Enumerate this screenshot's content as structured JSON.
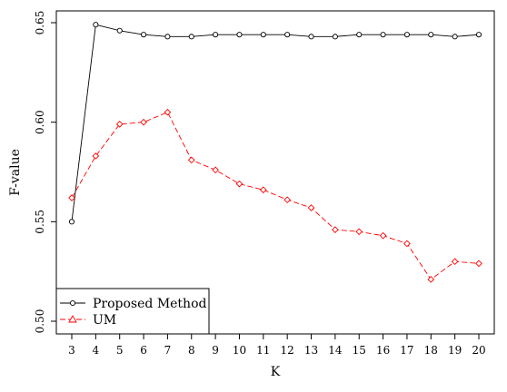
{
  "chart_data": {
    "type": "line",
    "xlabel": "K",
    "ylabel": "F-value",
    "x": [
      3,
      4,
      5,
      6,
      7,
      8,
      9,
      10,
      11,
      12,
      13,
      14,
      15,
      16,
      17,
      18,
      19,
      20
    ],
    "xlim": [
      3,
      20
    ],
    "ylim": [
      0.5,
      0.65
    ],
    "yticks": [
      "0.50",
      "0.55",
      "0.60",
      "0.65"
    ],
    "grid": false,
    "legend_position": "bottom-left",
    "series": [
      {
        "name": "Proposed Method",
        "marker": "circle",
        "line_style": "solid",
        "color": "#000000",
        "values": [
          0.55,
          0.649,
          0.646,
          0.644,
          0.643,
          0.643,
          0.644,
          0.644,
          0.644,
          0.644,
          0.643,
          0.643,
          0.644,
          0.644,
          0.644,
          0.644,
          0.643,
          0.644
        ]
      },
      {
        "name": "UM",
        "marker": "diamond",
        "legend_marker": "triangle",
        "line_style": "dashed",
        "color": "#ff0000",
        "values": [
          0.562,
          0.583,
          0.599,
          0.6,
          0.605,
          0.581,
          0.576,
          0.569,
          0.566,
          0.561,
          0.557,
          0.546,
          0.545,
          0.543,
          0.539,
          0.521,
          0.53,
          0.529
        ]
      }
    ]
  }
}
